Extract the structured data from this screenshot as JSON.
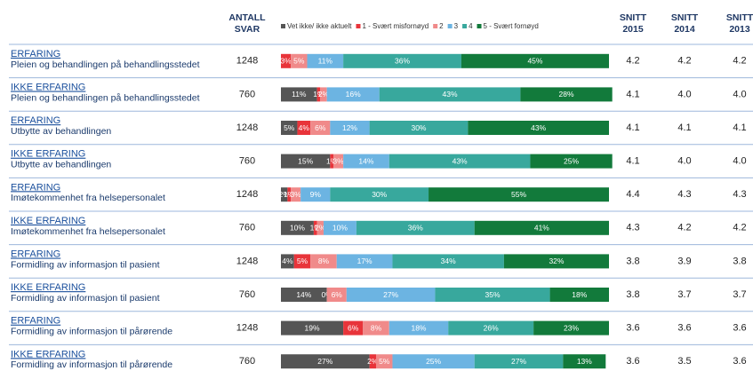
{
  "chart_data": {
    "type": "bar",
    "orientation": "horizontal",
    "stacked": true,
    "xlim": [
      0,
      100
    ],
    "columns": {
      "count": [
        "ANTALL",
        "SVAR"
      ],
      "snitt": [
        [
          "SNITT",
          "2015"
        ],
        [
          "SNITT",
          "2014"
        ],
        [
          "SNITT",
          "2013"
        ]
      ]
    },
    "rows": [
      {
        "group": "ERFARING",
        "label": "Pleien og behandlingen på behandlingsstedet",
        "count": 1248,
        "snitt": [
          "4.2",
          "4.2",
          "4.2"
        ]
      },
      {
        "group": "IKKE ERFARING",
        "label": "Pleien og behandlingen på behandlingsstedet",
        "count": 760,
        "snitt": [
          "4.1",
          "4.0",
          "4.0"
        ]
      },
      {
        "group": "ERFARING",
        "label": "Utbytte av behandlingen",
        "count": 1248,
        "snitt": [
          "4.1",
          "4.1",
          "4.1"
        ]
      },
      {
        "group": "IKKE ERFARING",
        "label": "Utbytte av behandlingen",
        "count": 760,
        "snitt": [
          "4.1",
          "4.0",
          "4.0"
        ]
      },
      {
        "group": "ERFARING",
        "label": "Imøtekommenhet fra helsepersonalet",
        "count": 1248,
        "snitt": [
          "4.4",
          "4.3",
          "4.3"
        ]
      },
      {
        "group": "IKKE ERFARING",
        "label": "Imøtekommenhet fra helsepersonalet",
        "count": 760,
        "snitt": [
          "4.3",
          "4.2",
          "4.2"
        ]
      },
      {
        "group": "ERFARING",
        "label": "Formidling av informasjon til pasient",
        "count": 1248,
        "snitt": [
          "3.8",
          "3.9",
          "3.8"
        ]
      },
      {
        "group": "IKKE ERFARING",
        "label": "Formidling av informasjon til pasient",
        "count": 760,
        "snitt": [
          "3.8",
          "3.7",
          "3.7"
        ]
      },
      {
        "group": "ERFARING",
        "label": "Formidling av informasjon til pårørende",
        "count": 1248,
        "snitt": [
          "3.6",
          "3.6",
          "3.6"
        ]
      },
      {
        "group": "IKKE ERFARING",
        "label": "Formidling av informasjon til pårørende",
        "count": 760,
        "snitt": [
          "3.6",
          "3.5",
          "3.6"
        ]
      }
    ],
    "series": [
      {
        "name": "Vet ikke/ ikke aktuelt",
        "color": "#555555",
        "values": [
          null,
          11,
          5,
          15,
          2,
          10,
          4,
          14,
          19,
          27
        ],
        "value_labels": [
          null,
          "11%",
          "5%",
          "15%",
          "2%",
          "10%",
          "4%",
          "14%",
          "19%",
          "27%"
        ]
      },
      {
        "name": "1 - Svært misfornøyd",
        "color": "#e8343a",
        "values": [
          3,
          1,
          4,
          1,
          1,
          1,
          5,
          0,
          6,
          2
        ],
        "value_labels": [
          "3%",
          "1%",
          "4%",
          "1%",
          "1%",
          "1%",
          "5%",
          "0%",
          "6%",
          "2%"
        ]
      },
      {
        "name": "2",
        "color": "#f08a8a",
        "values": [
          5,
          2,
          6,
          3,
          3,
          2,
          8,
          6,
          8,
          5
        ],
        "value_labels": [
          "5%",
          "2%",
          "6%",
          "3%",
          "3%",
          "2%",
          "8%",
          "6%",
          "8%",
          "5%"
        ]
      },
      {
        "name": "3",
        "color": "#6cb4e2",
        "values": [
          11,
          16,
          12,
          14,
          9,
          10,
          17,
          27,
          18,
          25
        ],
        "value_labels": [
          "11%",
          "16%",
          "12%",
          "14%",
          "9%",
          "10%",
          "17%",
          "27%",
          "18%",
          "25%"
        ]
      },
      {
        "name": "4",
        "color": "#38a89d",
        "values": [
          36,
          43,
          30,
          43,
          30,
          36,
          34,
          35,
          26,
          27
        ],
        "value_labels": [
          "36%",
          "43%",
          "30%",
          "43%",
          "30%",
          "36%",
          "34%",
          "35%",
          "26%",
          "27%"
        ]
      },
      {
        "name": "5 - Svært fornøyd",
        "color": "#127a3b",
        "values": [
          45,
          28,
          43,
          25,
          55,
          41,
          32,
          18,
          23,
          13
        ],
        "value_labels": [
          "45%",
          "28%",
          "43%",
          "25%",
          "55%",
          "41%",
          "32%",
          "18%",
          "23%",
          "13%"
        ]
      }
    ]
  }
}
